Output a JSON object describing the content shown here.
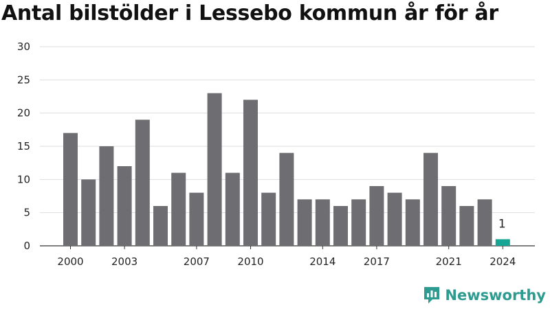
{
  "title": "Antal bilstölder i Lessebo kommun år för år",
  "brand": {
    "name": "Newsworthy",
    "icon": "newsworthy-logo-icon",
    "color": "#2d9b8f"
  },
  "colors": {
    "bar": "#6e6d72",
    "highlight": "#19a594",
    "grid": "#dddddd",
    "axis": "#333333"
  },
  "chart_data": {
    "type": "bar",
    "x": [
      2000,
      2001,
      2002,
      2003,
      2004,
      2005,
      2006,
      2007,
      2008,
      2009,
      2010,
      2011,
      2012,
      2013,
      2014,
      2015,
      2016,
      2017,
      2018,
      2019,
      2020,
      2021,
      2022,
      2023,
      2024
    ],
    "values": [
      17,
      10,
      15,
      12,
      19,
      6,
      11,
      8,
      23,
      11,
      22,
      8,
      14,
      7,
      7,
      6,
      7,
      9,
      8,
      7,
      14,
      9,
      6,
      7,
      1
    ],
    "highlight_index": 24,
    "data_labels": [
      {
        "index": 24,
        "text": "1"
      }
    ],
    "x_ticks": [
      "2000",
      "2003",
      "2007",
      "2010",
      "2014",
      "2017",
      "2021",
      "2024"
    ],
    "y_ticks": [
      "0",
      "5",
      "10",
      "15",
      "20",
      "25",
      "30"
    ],
    "ylim": [
      0,
      30
    ],
    "grid": true,
    "xlabel": "",
    "ylabel": ""
  }
}
